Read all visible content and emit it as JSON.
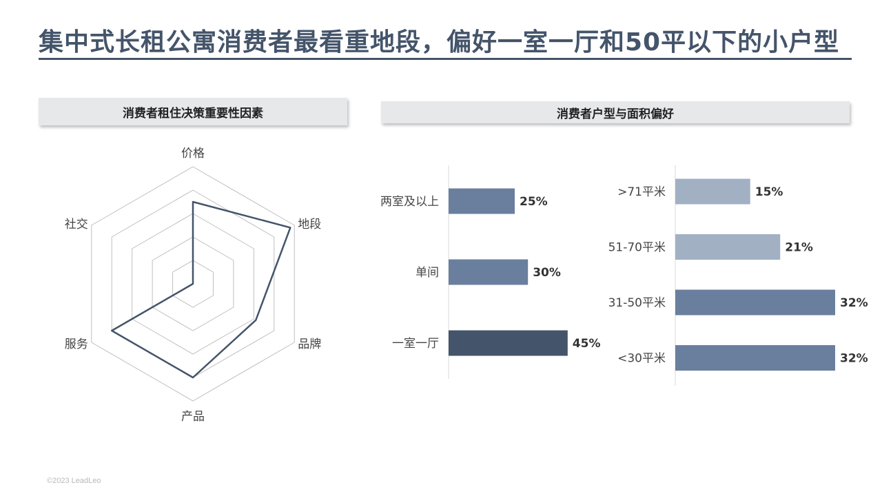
{
  "page": {
    "title": "集中式长租公寓消费者最看重地段，偏好一室一厅和50平以下的小户型",
    "footer": "©2023 LeadLeo"
  },
  "colors": {
    "title": "#44546a",
    "dark_bar": "#44546a",
    "mid_bar": "#6a7f9e",
    "light_bar": "#a2b0c3",
    "grid": "#bfbfbf"
  },
  "panels": {
    "left_header": "消费者租住决策重要性因素",
    "right_header": "消费者户型与面积偏好"
  },
  "chart_data": [
    {
      "type": "radar",
      "title": "消费者租住决策重要性因素",
      "axes": [
        "价格",
        "地段",
        "品牌",
        "产品",
        "服务",
        "社交"
      ],
      "levels": 5,
      "range": [
        0,
        5
      ],
      "series": [
        {
          "values": [
            3.5,
            4.8,
            3.1,
            4.0,
            4.0,
            0
          ]
        }
      ]
    },
    {
      "type": "bar",
      "orientation": "horizontal",
      "categories": [
        "两室及以上",
        "单间",
        "一室一厅"
      ],
      "values": [
        25,
        30,
        45
      ],
      "value_labels": [
        "25%",
        "30%",
        "45%"
      ],
      "bar_colors": [
        "#6a7f9e",
        "#6a7f9e",
        "#44546a"
      ]
    },
    {
      "type": "bar",
      "orientation": "horizontal",
      "categories": [
        ">71平米",
        "51-70平米",
        "31-50平米",
        "<30平米"
      ],
      "values": [
        15,
        21,
        32,
        32
      ],
      "value_labels": [
        "15%",
        "21%",
        "32%",
        "32%"
      ],
      "bar_colors": [
        "#a2b0c3",
        "#a2b0c3",
        "#6a7f9e",
        "#6a7f9e"
      ]
    }
  ]
}
